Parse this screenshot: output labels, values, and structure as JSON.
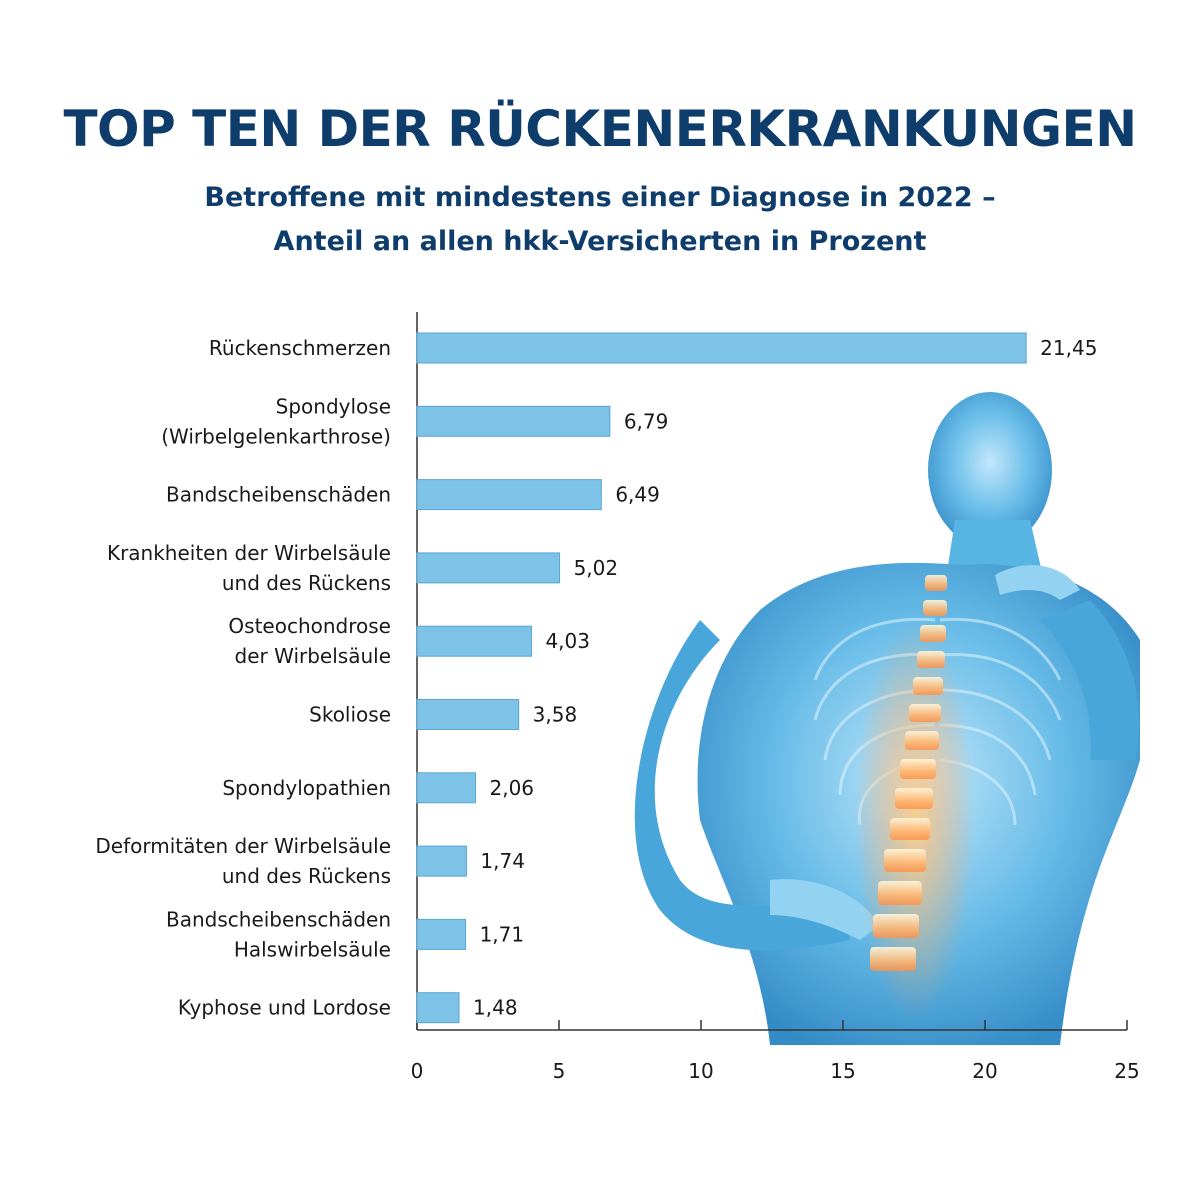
{
  "chart_data": {
    "type": "bar",
    "orientation": "horizontal",
    "title": "TOP TEN DER RÜCKENERKRANKUNGEN",
    "subtitle": [
      "Betroffene mit mindestens einer Diagnose in 2022 –",
      "Anteil an allen hkk-Versicherten in Prozent"
    ],
    "categories": [
      [
        "Rückenschmerzen"
      ],
      [
        "Spondylose",
        "(Wirbelgelenkarthrose)"
      ],
      [
        "Bandscheibenschäden"
      ],
      [
        "Krankheiten der Wirbelsäule",
        "und des Rückens"
      ],
      [
        "Osteochondrose",
        "der Wirbelsäule"
      ],
      [
        "Skoliose"
      ],
      [
        "Spondylopathien"
      ],
      [
        "Deformitäten der Wirbelsäule",
        "und des Rückens"
      ],
      [
        "Bandscheibenschäden",
        "Halswirbelsäule"
      ],
      [
        "Kyphose und Lordose"
      ]
    ],
    "values": [
      21.45,
      6.79,
      6.49,
      5.02,
      4.03,
      3.58,
      2.06,
      1.74,
      1.71,
      1.48
    ],
    "value_labels": [
      "21,45",
      "6,79",
      "6,49",
      "5,02",
      "4,03",
      "3,58",
      "2,06",
      "1,74",
      "1,71",
      "1,48"
    ],
    "xlim": [
      0,
      25
    ],
    "xticks": [
      0,
      5,
      10,
      15,
      20,
      25
    ],
    "xlabel": "",
    "ylabel": "",
    "grid": false,
    "colors": {
      "bar_fill": "#7dc3e8",
      "bar_stroke": "#5aa6d0",
      "title": "#0e3c6b",
      "axis": "#333333"
    },
    "background_image": "human-back-spine-illustration"
  }
}
